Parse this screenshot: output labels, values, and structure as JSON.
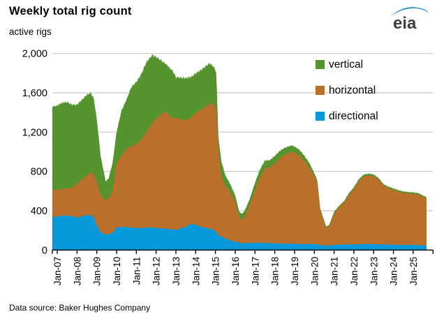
{
  "header": {
    "title": "Weekly total rig count",
    "unit_label": "active rigs",
    "logo_text": "eia"
  },
  "footer": {
    "source": "Data source: Baker Hughes Company"
  },
  "colors": {
    "vertical": "#55932e",
    "horizontal": "#ba702b",
    "directional": "#0899dc",
    "grid": "#c8c8c8",
    "axis": "#000000",
    "logo_blue": "#1e8dcb",
    "logo_gray": "#3f3f3f"
  },
  "legend": [
    {
      "label": "vertical",
      "color": "#55932e"
    },
    {
      "label": "horizontal",
      "color": "#ba702b"
    },
    {
      "label": "directional",
      "color": "#0899dc"
    }
  ],
  "chart_data": {
    "type": "area",
    "stacked": true,
    "title": "Weekly total rig count",
    "ylabel": "active rigs",
    "xlabel": "",
    "grid": "horizontal",
    "legend_position": "top-right-inside",
    "ylim": [
      0,
      2000
    ],
    "yticks": [
      0,
      400,
      800,
      1200,
      1600,
      2000
    ],
    "ytick_labels": [
      "0",
      "400",
      "800",
      "1,200",
      "1,600",
      "2,000"
    ],
    "xtick_labels": [
      "Jan-07",
      "Jan-08",
      "Jan-09",
      "Jan-10",
      "Jan-11",
      "Jan-12",
      "Jan-13",
      "Jan-14",
      "Jan-15",
      "Jan-16",
      "Jan-17",
      "Jan-18",
      "Jan-19",
      "Jan-20",
      "Jan-21",
      "Jan-22",
      "Jan-23",
      "Jan-24",
      "Jan-25"
    ],
    "x_unit": "year (weekly observations)",
    "x_range": [
      2006.75,
      2025.67
    ],
    "stack_order_bottom_to_top": [
      "directional",
      "horizontal",
      "vertical"
    ],
    "x": [
      2006.75,
      2007.0,
      2007.25,
      2007.5,
      2007.75,
      2008.0,
      2008.25,
      2008.5,
      2008.7,
      2008.85,
      2009.0,
      2009.2,
      2009.45,
      2009.6,
      2009.8,
      2010.0,
      2010.25,
      2010.5,
      2010.75,
      2011.0,
      2011.25,
      2011.5,
      2011.8,
      2012.0,
      2012.25,
      2012.5,
      2012.85,
      2013.0,
      2013.25,
      2013.5,
      2013.8,
      2014.0,
      2014.25,
      2014.5,
      2014.7,
      2014.9,
      2015.04,
      2015.15,
      2015.3,
      2015.5,
      2015.75,
      2016.0,
      2016.2,
      2016.35,
      2016.5,
      2016.75,
      2017.0,
      2017.25,
      2017.5,
      2017.75,
      2018.0,
      2018.25,
      2018.5,
      2018.85,
      2019.0,
      2019.25,
      2019.5,
      2019.75,
      2020.0,
      2020.15,
      2020.3,
      2020.6,
      2020.75,
      2021.0,
      2021.25,
      2021.5,
      2021.75,
      2022.0,
      2022.25,
      2022.5,
      2022.75,
      2023.0,
      2023.25,
      2023.5,
      2023.75,
      2024.0,
      2024.25,
      2024.5,
      2024.75,
      2025.0,
      2025.25,
      2025.5,
      2025.67
    ],
    "series": [
      {
        "name": "directional",
        "color": "#0899dc",
        "values": [
          340,
          340,
          350,
          350,
          345,
          330,
          345,
          355,
          355,
          330,
          250,
          180,
          158,
          160,
          175,
          230,
          235,
          235,
          230,
          225,
          225,
          228,
          230,
          225,
          220,
          218,
          210,
          205,
          220,
          235,
          270,
          255,
          240,
          225,
          220,
          205,
          185,
          150,
          140,
          115,
          100,
          85,
          75,
          70,
          70,
          72,
          75,
          75,
          72,
          70,
          68,
          66,
          65,
          65,
          64,
          62,
          60,
          60,
          62,
          58,
          50,
          45,
          46,
          52,
          55,
          57,
          58,
          58,
          60,
          60,
          60,
          60,
          58,
          57,
          55,
          54,
          53,
          52,
          52,
          52,
          50,
          48,
          47
        ]
      },
      {
        "name": "horizontal",
        "color": "#ba702b",
        "values": [
          270,
          275,
          270,
          275,
          290,
          344,
          375,
          405,
          440,
          440,
          448,
          380,
          350,
          365,
          425,
          650,
          725,
          795,
          830,
          852,
          905,
          967,
          1060,
          1112,
          1160,
          1190,
          1130,
          1144,
          1110,
          1085,
          1085,
          1142,
          1185,
          1235,
          1270,
          1275,
          1265,
          860,
          617,
          535,
          490,
          405,
          255,
          245,
          280,
          398,
          535,
          665,
          758,
          770,
          812,
          869,
          905,
          935,
          926,
          898,
          845,
          778,
          695,
          632,
          350,
          179,
          194,
          319,
          378,
          423,
          502,
          561,
          642,
          691,
          700,
          691,
          657,
          598,
          575,
          558,
          542,
          529,
          523,
          520,
          515,
          494,
          478
        ]
      },
      {
        "name": "vertical",
        "color": "#55932e",
        "values": [
          850,
          855,
          880,
          880,
          845,
          806,
          810,
          820,
          805,
          770,
          632,
          390,
          192,
          205,
          290,
          320,
          460,
          500,
          600,
          633,
          660,
          715,
          695,
          628,
          550,
          485,
          480,
          411,
          425,
          430,
          410,
          403,
          405,
          410,
          410,
          390,
          360,
          140,
          143,
          110,
          80,
          66,
          60,
          52,
          60,
          60,
          76,
          80,
          81,
          75,
          78,
          75,
          71,
          65,
          63,
          60,
          53,
          49,
          24,
          22,
          20,
          16,
          15,
          19,
          17,
          17,
          20,
          20,
          20,
          18,
          18,
          18,
          18,
          15,
          15,
          15,
          15,
          15,
          15,
          15,
          15,
          13,
          12
        ]
      }
    ]
  }
}
